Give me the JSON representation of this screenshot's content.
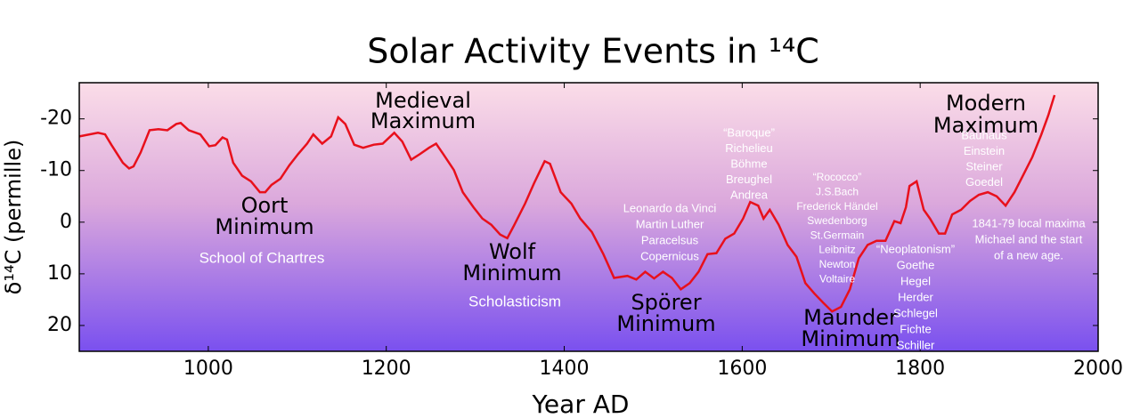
{
  "chart_data": {
    "type": "line",
    "title": "Solar Activity Events in ¹⁴C",
    "x_label": "Year AD",
    "y_label": "δ¹⁴C (permille)",
    "xlim": [
      855,
      2000
    ],
    "ylim": [
      25,
      -27
    ],
    "xticks": [
      1000,
      1200,
      1400,
      1600,
      1800,
      2000
    ],
    "yticks": [
      -20,
      -10,
      0,
      10,
      20
    ],
    "series": [
      {
        "color": "#e8101c",
        "x": [
          855,
          876,
          884,
          891,
          904,
          911,
          916,
          924,
          934,
          944,
          954,
          964,
          969,
          978,
          991,
          1001,
          1008,
          1016,
          1021,
          1028,
          1038,
          1048,
          1058,
          1064,
          1071,
          1081,
          1091,
          1101,
          1111,
          1118,
          1128,
          1138,
          1146,
          1154,
          1164,
          1174,
          1186,
          1196,
          1209,
          1218,
          1228,
          1238,
          1248,
          1256,
          1264,
          1276,
          1286,
          1298,
          1308,
          1318,
          1328,
          1336,
          1344,
          1356,
          1366,
          1378,
          1384,
          1396,
          1408,
          1418,
          1431,
          1444,
          1456,
          1471,
          1481,
          1491,
          1501,
          1511,
          1521,
          1531,
          1541,
          1551,
          1561,
          1571,
          1581,
          1591,
          1601,
          1609,
          1618,
          1624,
          1631,
          1641,
          1651,
          1661,
          1671,
          1681,
          1691,
          1701,
          1711,
          1721,
          1731,
          1741,
          1751,
          1761,
          1771,
          1778,
          1784,
          1788,
          1796,
          1804,
          1811,
          1821,
          1828,
          1836,
          1846,
          1856,
          1866,
          1876,
          1886,
          1896,
          1906,
          1916,
          1926,
          1936,
          1944,
          1951
        ],
        "values": [
          -16.6,
          -17.3,
          -17,
          -15,
          -11.5,
          -10.4,
          -10.8,
          -13.5,
          -17.8,
          -18,
          -17.8,
          -19,
          -19.2,
          -17.8,
          -17,
          -14.7,
          -14.9,
          -16.4,
          -16,
          -11.5,
          -9,
          -7.9,
          -5.8,
          -5.8,
          -7.2,
          -8.4,
          -11,
          -13.2,
          -15.2,
          -17,
          -15.2,
          -16.6,
          -20.3,
          -19,
          -15,
          -14.4,
          -15,
          -15.2,
          -17.3,
          -15.6,
          -12.1,
          -13.2,
          -14.4,
          -15.2,
          -13.2,
          -10.1,
          -5.8,
          -2.9,
          -0.7,
          0.5,
          2.4,
          3.1,
          0.5,
          -3.6,
          -7.5,
          -11.8,
          -11.3,
          -5.8,
          -3.6,
          -0.7,
          1.9,
          6.2,
          10.8,
          10.4,
          11.1,
          9.6,
          10.9,
          9.6,
          10.8,
          13,
          11.8,
          9.6,
          6.2,
          6,
          3.2,
          2.2,
          -0.7,
          -3.9,
          -3.2,
          -0.7,
          -2.4,
          0.5,
          4.4,
          6.7,
          11.8,
          13.8,
          15.6,
          17.3,
          16.4,
          13,
          7,
          4.4,
          3.6,
          3.6,
          -0.2,
          0.2,
          -2.9,
          -7,
          -7.9,
          -2.4,
          -0.7,
          2.2,
          2.2,
          -1.5,
          -2.4,
          -4.1,
          -5.3,
          -5.8,
          -5,
          -3.2,
          -5.8,
          -9.2,
          -12.6,
          -16.9,
          -20.7,
          -24.6
        ]
      }
    ],
    "events": [
      [
        "Medieval",
        "Maximum"
      ],
      [
        "Oort",
        "Minimum"
      ],
      [
        "Wolf",
        "Minimum"
      ],
      [
        "Spörer",
        "Minimum"
      ],
      [
        "Maunder",
        "Minimum"
      ],
      [
        "Modern",
        "Maximum"
      ]
    ],
    "notes": [
      [
        "School of Chartres"
      ],
      [
        "Scholasticism"
      ],
      [
        "Leonardo da Vinci",
        "Martin Luther",
        "Paracelsus",
        "Copernicus"
      ],
      [
        "“Baroque”",
        "Richelieu",
        "Böhme",
        "Breughel",
        "Andrea"
      ],
      [
        "“Rococco”",
        "J.S.Bach",
        "Frederick Händel",
        "Swedenborg",
        "St.Germain",
        "Leibnitz",
        "Newton",
        "Voltaire"
      ],
      [
        "“Neoplatonism”",
        "Goethe",
        "Hegel",
        "Herder",
        "Schlegel",
        "Fichte",
        "Schiller"
      ],
      [
        "Bauhaus",
        "Einstein",
        "Steiner",
        "Goedel"
      ],
      [
        "1841-79 local maxima",
        "Michael and the start",
        "of a new age."
      ]
    ]
  }
}
